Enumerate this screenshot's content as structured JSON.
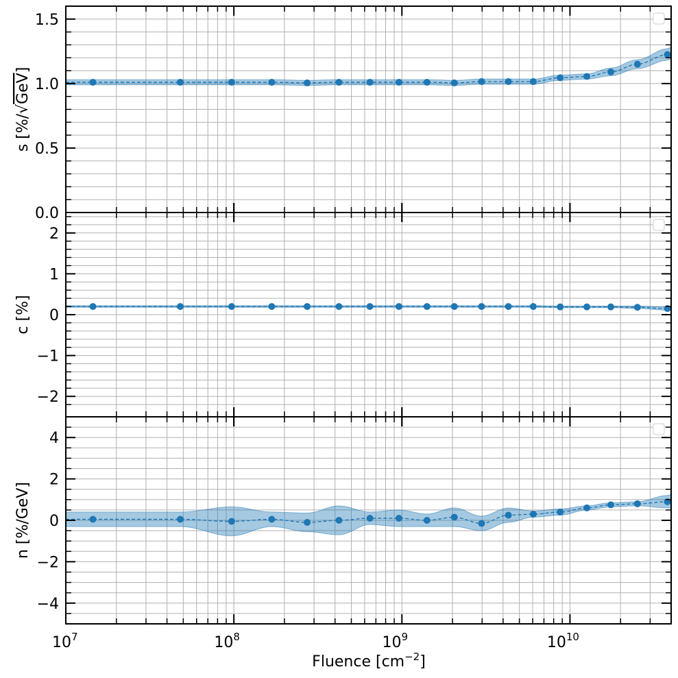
{
  "colors": {
    "series": "#1f77b4",
    "grid": "#b0b0b0"
  },
  "xaxis": {
    "label": "Fluence [cm",
    "label_sup": "−2",
    "label_end": "]",
    "scale": "log",
    "range": [
      10000000.0,
      40000000000.0
    ],
    "major_ticks": [
      {
        "value": 10000000.0,
        "base": "10",
        "exp": "7"
      },
      {
        "value": 100000000.0,
        "base": "10",
        "exp": "8"
      },
      {
        "value": 1000000000.0,
        "base": "10",
        "exp": "9"
      },
      {
        "value": 10000000000.0,
        "base": "10",
        "exp": "10"
      }
    ]
  },
  "chart_data": [
    {
      "type": "line",
      "panel": "top",
      "ylabel_prefix": "s [%/",
      "ylabel_root": "GeV",
      "ylabel_suffix": "]",
      "ylim": [
        0,
        1.6
      ],
      "yticks": [
        0.0,
        0.5,
        1.0,
        1.5
      ],
      "ytick_labels": [
        "0.0",
        "0.5",
        "1.0",
        "1.5"
      ],
      "yminor": [
        0.1,
        0.2,
        0.3,
        0.4,
        0.6,
        0.7,
        0.8,
        0.9,
        1.1,
        1.2,
        1.3,
        1.4,
        1.6
      ],
      "legend_position": "upper right",
      "x": [
        14500000.0,
        48000000.0,
        97000000.0,
        168000000.0,
        273000000.0,
        422000000.0,
        645000000.0,
        960000000.0,
        1410000000.0,
        2050000000.0,
        2980000000.0,
        4300000000.0,
        6050000000.0,
        8750000000.0,
        12600000000.0,
        17500000000.0,
        25200000000.0,
        38000000000.0
      ],
      "y": [
        1.01,
        1.01,
        1.01,
        1.01,
        1.005,
        1.01,
        1.01,
        1.01,
        1.01,
        1.005,
        1.015,
        1.015,
        1.015,
        1.045,
        1.055,
        1.09,
        1.15,
        1.225
      ],
      "band_halfwidth": [
        0.02,
        0.02,
        0.02,
        0.02,
        0.02,
        0.02,
        0.02,
        0.02,
        0.02,
        0.02,
        0.02,
        0.02,
        0.02,
        0.02,
        0.02,
        0.03,
        0.035,
        0.045
      ]
    },
    {
      "type": "line",
      "panel": "middle",
      "ylabel": "c [%]",
      "ylim": [
        -2.5,
        2.5
      ],
      "yticks": [
        -2,
        -1,
        0,
        1,
        2
      ],
      "ytick_labels": [
        "−2",
        "−1",
        "0",
        "1",
        "2"
      ],
      "yminor": [
        -2.2,
        -1.8,
        -1.6,
        -1.4,
        -1.2,
        -0.8,
        -0.6,
        -0.4,
        -0.2,
        0.2,
        0.4,
        0.6,
        0.8,
        1.2,
        1.4,
        1.6,
        1.8,
        2.2,
        2.4
      ],
      "legend_position": "upper right",
      "x": [
        14500000.0,
        48000000.0,
        97000000.0,
        168000000.0,
        273000000.0,
        422000000.0,
        645000000.0,
        960000000.0,
        1410000000.0,
        2050000000.0,
        2980000000.0,
        4300000000.0,
        6050000000.0,
        8750000000.0,
        12600000000.0,
        17500000000.0,
        25200000000.0,
        38000000000.0
      ],
      "y": [
        0.2,
        0.2,
        0.2,
        0.2,
        0.2,
        0.2,
        0.2,
        0.2,
        0.2,
        0.2,
        0.2,
        0.2,
        0.2,
        0.19,
        0.19,
        0.19,
        0.18,
        0.15
      ],
      "band_halfwidth": [
        0.02,
        0.02,
        0.02,
        0.02,
        0.02,
        0.02,
        0.02,
        0.02,
        0.02,
        0.02,
        0.02,
        0.02,
        0.02,
        0.02,
        0.02,
        0.02,
        0.03,
        0.04
      ]
    },
    {
      "type": "line",
      "panel": "bottom",
      "ylabel": "n [%/GeV]",
      "ylim": [
        -5,
        5
      ],
      "yticks": [
        -4,
        -2,
        0,
        2,
        4
      ],
      "ytick_labels": [
        "−4",
        "−2",
        "0",
        "2",
        "4"
      ],
      "yminor": [
        -4.5,
        -3.5,
        -3,
        -2.5,
        -1.5,
        -1,
        -0.5,
        0.5,
        1,
        1.5,
        2.5,
        3,
        3.5,
        4.5
      ],
      "legend_position": "upper right",
      "x": [
        14500000.0,
        48000000.0,
        97000000.0,
        168000000.0,
        273000000.0,
        422000000.0,
        645000000.0,
        960000000.0,
        1410000000.0,
        2050000000.0,
        2980000000.0,
        4300000000.0,
        6050000000.0,
        8750000000.0,
        12600000000.0,
        17500000000.0,
        25200000000.0,
        38000000000.0
      ],
      "y": [
        0.05,
        0.05,
        -0.05,
        0.05,
        -0.1,
        0.0,
        0.1,
        0.1,
        0.0,
        0.15,
        -0.15,
        0.25,
        0.3,
        0.4,
        0.6,
        0.75,
        0.8,
        0.9
      ],
      "band_halfwidth": [
        0.35,
        0.35,
        0.7,
        0.35,
        0.45,
        0.7,
        0.3,
        0.4,
        0.3,
        0.45,
        0.35,
        0.35,
        0.15,
        0.15,
        0.1,
        0.1,
        0.1,
        0.3
      ]
    }
  ]
}
